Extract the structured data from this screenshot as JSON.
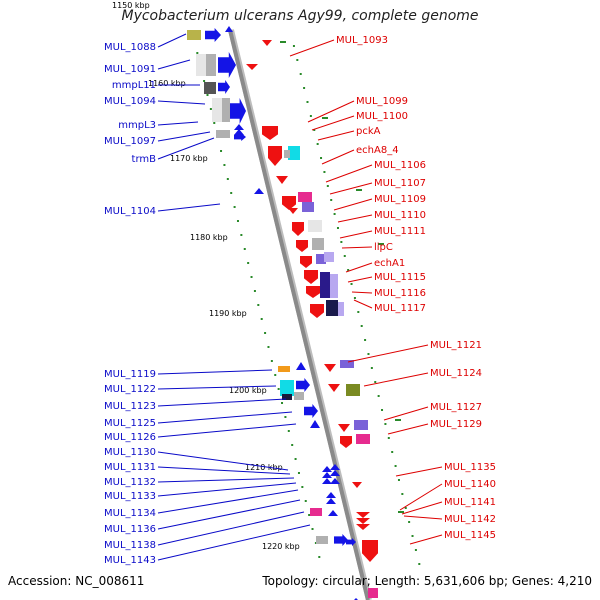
{
  "title": "Mycobacterium ulcerans Agy99, complete genome",
  "footer": {
    "accession": "Accession: NC_008611",
    "summary": "Topology: circular; Length: 5,631,606 bp; Genes: 4,210"
  },
  "colors": {
    "left_label": "#0a0ac8",
    "right_label": "#dd0000",
    "backbone": "#8a8a8a",
    "tick": "#2a8a2a"
  },
  "kbp_markers": [
    "1150 kbp",
    "1160 kbp",
    "1170 kbp",
    "1180 kbp",
    "1190 kbp",
    "1200 kbp",
    "1210 kbp",
    "1220 kbp"
  ],
  "left_genes": [
    "MUL_1088",
    "MUL_1091",
    "mmpL11",
    "MUL_1094",
    "mmpL3",
    "MUL_1097",
    "trmB",
    "MUL_1104",
    "MUL_1119",
    "MUL_1122",
    "MUL_1123",
    "MUL_1125",
    "MUL_1126",
    "MUL_1130",
    "MUL_1131",
    "MUL_1132",
    "MUL_1133",
    "MUL_1134",
    "MUL_1136",
    "MUL_1138",
    "MUL_1143"
  ],
  "right_genes": [
    "MUL_1093",
    "MUL_1099",
    "MUL_1100",
    "pckA",
    "echA8_4",
    "MUL_1106",
    "MUL_1107",
    "MUL_1109",
    "MUL_1110",
    "MUL_1111",
    "lipC",
    "echA1",
    "MUL_1115",
    "MUL_1116",
    "MUL_1117",
    "MUL_1121",
    "MUL_1124",
    "MUL_1127",
    "MUL_1129",
    "MUL_1135",
    "MUL_1140",
    "MUL_1141",
    "MUL_1142",
    "MUL_1145"
  ]
}
